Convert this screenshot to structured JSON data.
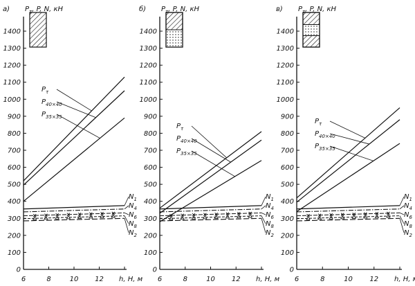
{
  "chart_data": [
    {
      "type": "line",
      "panel_label": "а)",
      "ylabel_parts": [
        "P",
        "τ",
        ", P, N, кН"
      ],
      "xlabel": "h, H, м",
      "xlim": [
        6,
        14
      ],
      "ylim": [
        0,
        1500
      ],
      "x_ticks": [
        6,
        8,
        10,
        12
      ],
      "y_ticks": [
        0,
        100,
        200,
        300,
        400,
        500,
        600,
        700,
        800,
        900,
        1000,
        1100,
        1200,
        1300,
        1400
      ],
      "legend_icon": "hatched-block",
      "x": [
        6,
        14
      ],
      "series": [
        {
          "name": "Pτ",
          "label_parts": [
            "P",
            "τ",
            ""
          ],
          "values": [
            520,
            1130
          ],
          "style": "solid"
        },
        {
          "name": "P40×40",
          "label_parts": [
            "P",
            "40×40",
            ""
          ],
          "values": [
            495,
            1050
          ],
          "style": "solid"
        },
        {
          "name": "P35×35",
          "label_parts": [
            "P",
            "35×35",
            ""
          ],
          "values": [
            400,
            890
          ],
          "style": "solid"
        },
        {
          "name": "N1",
          "label_parts": [
            "N",
            "1",
            ""
          ],
          "values": [
            355,
            375
          ],
          "style": "solid"
        },
        {
          "name": "N4",
          "label_parts": [
            "N",
            "4",
            ""
          ],
          "values": [
            338,
            355
          ],
          "style": "dashdot"
        },
        {
          "name": "N6",
          "label_parts": [
            "N",
            "6",
            ""
          ],
          "values": [
            315,
            332
          ],
          "style": "cross"
        },
        {
          "name": "N8",
          "label_parts": [
            "N",
            "8",
            ""
          ],
          "values": [
            298,
            315
          ],
          "style": "triangle"
        },
        {
          "name": "N2",
          "label_parts": [
            "N",
            "2",
            ""
          ],
          "values": [
            285,
            300
          ],
          "style": "dashed"
        }
      ]
    },
    {
      "type": "line",
      "panel_label": "б)",
      "ylabel_parts": [
        "P",
        "τ",
        ", P, N, кН"
      ],
      "xlabel": "h, H, м",
      "xlim": [
        6,
        14
      ],
      "ylim": [
        0,
        1500
      ],
      "x_ticks": [
        6,
        8,
        10,
        12
      ],
      "y_ticks": [
        0,
        100,
        200,
        300,
        400,
        500,
        600,
        700,
        800,
        900,
        1000,
        1100,
        1200,
        1300,
        1400
      ],
      "legend_icon": "hatched-block-dotted-bottom",
      "x": [
        6,
        14
      ],
      "series": [
        {
          "name": "Pτ",
          "label_parts": [
            "P",
            "τ",
            ""
          ],
          "values": [
            360,
            810
          ],
          "style": "solid"
        },
        {
          "name": "P40×40",
          "label_parts": [
            "P",
            "40×40",
            ""
          ],
          "values": [
            330,
            760
          ],
          "style": "solid"
        },
        {
          "name": "P35×35",
          "label_parts": [
            "P",
            "35×35",
            ""
          ],
          "values": [
            280,
            640
          ],
          "style": "solid"
        },
        {
          "name": "N1",
          "label_parts": [
            "N",
            "1",
            ""
          ],
          "values": [
            355,
            375
          ],
          "style": "solid"
        },
        {
          "name": "N4",
          "label_parts": [
            "N",
            "4",
            ""
          ],
          "values": [
            338,
            355
          ],
          "style": "dashdot"
        },
        {
          "name": "N6",
          "label_parts": [
            "N",
            "6",
            ""
          ],
          "values": [
            315,
            332
          ],
          "style": "cross"
        },
        {
          "name": "N8",
          "label_parts": [
            "N",
            "8",
            ""
          ],
          "values": [
            298,
            315
          ],
          "style": "triangle"
        },
        {
          "name": "N2",
          "label_parts": [
            "N",
            "2",
            ""
          ],
          "values": [
            285,
            300
          ],
          "style": "dashed"
        }
      ]
    },
    {
      "type": "line",
      "panel_label": "в)",
      "ylabel_parts": [
        "P",
        "τ",
        ", P, N, кН"
      ],
      "xlabel": "h, H, м",
      "xlim": [
        6,
        14
      ],
      "ylim": [
        0,
        1500
      ],
      "x_ticks": [
        6,
        8,
        10,
        12
      ],
      "y_ticks": [
        0,
        100,
        200,
        300,
        400,
        500,
        600,
        700,
        800,
        900,
        1000,
        1100,
        1200,
        1300,
        1400
      ],
      "legend_icon": "hatched-block-dotted-middle",
      "x": [
        6,
        14
      ],
      "series": [
        {
          "name": "Pτ",
          "label_parts": [
            "P",
            "τ",
            ""
          ],
          "values": [
            420,
            950
          ],
          "style": "solid"
        },
        {
          "name": "P40×40",
          "label_parts": [
            "P",
            "40×40",
            ""
          ],
          "values": [
            395,
            880
          ],
          "style": "solid"
        },
        {
          "name": "P35×35",
          "label_parts": [
            "P",
            "35×35",
            ""
          ],
          "values": [
            340,
            740
          ],
          "style": "solid"
        },
        {
          "name": "N1",
          "label_parts": [
            "N",
            "1",
            ""
          ],
          "values": [
            355,
            375
          ],
          "style": "solid"
        },
        {
          "name": "N4",
          "label_parts": [
            "N",
            "4",
            ""
          ],
          "values": [
            338,
            355
          ],
          "style": "dashdot"
        },
        {
          "name": "N6",
          "label_parts": [
            "N",
            "6",
            ""
          ],
          "values": [
            315,
            332
          ],
          "style": "cross"
        },
        {
          "name": "N8",
          "label_parts": [
            "N",
            "8",
            ""
          ],
          "values": [
            298,
            315
          ],
          "style": "triangle"
        },
        {
          "name": "N2",
          "label_parts": [
            "N",
            "2",
            ""
          ],
          "values": [
            285,
            300
          ],
          "style": "dashed"
        }
      ]
    }
  ]
}
